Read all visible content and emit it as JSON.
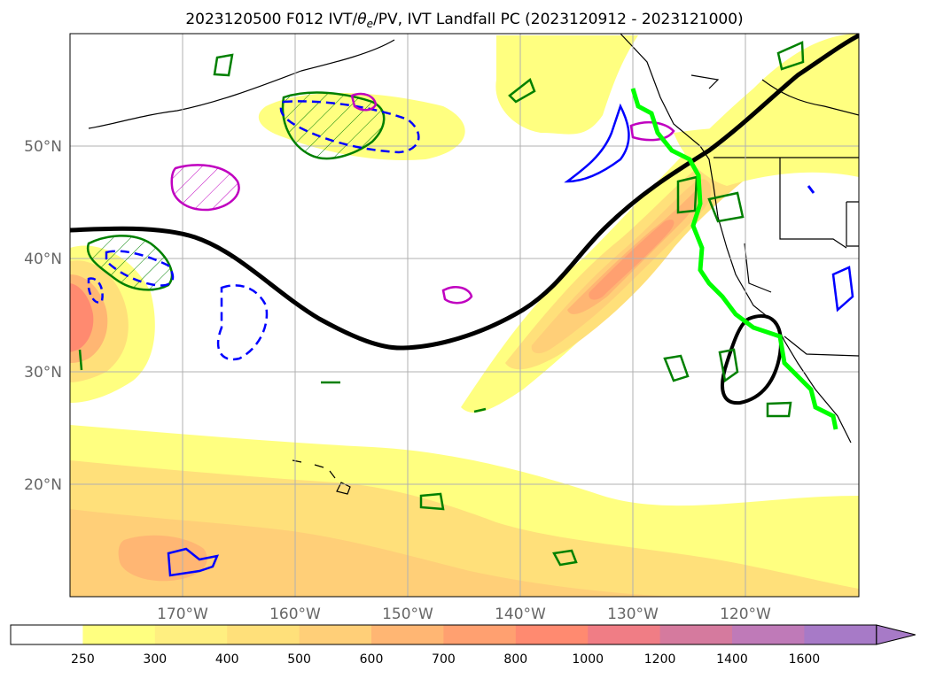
{
  "title": "2023120500 F012 IVT/θₑ/PV, IVT Landfall PC (2023120912 - 2023121000)",
  "title_parts": {
    "prefix": "2023120500 F012 IVT/",
    "theta": "θ",
    "theta_sub": "e",
    "suffix": "/PV, IVT Landfall PC (2023120912 - 2023121000)"
  },
  "map": {
    "projection": "plate-carree",
    "lon_range": [
      -180,
      -110
    ],
    "lat_range": [
      10,
      60
    ],
    "lon_ticks": [
      {
        "value": -170,
        "label": "170°W"
      },
      {
        "value": -160,
        "label": "160°W"
      },
      {
        "value": -150,
        "label": "150°W"
      },
      {
        "value": -140,
        "label": "140°W"
      },
      {
        "value": -130,
        "label": "130°W"
      },
      {
        "value": -120,
        "label": "120°W"
      }
    ],
    "lat_ticks": [
      {
        "value": 20,
        "label": "20°N"
      },
      {
        "value": 30,
        "label": "30°N"
      },
      {
        "value": 40,
        "label": "40°N"
      },
      {
        "value": 50,
        "label": "50°N"
      }
    ],
    "grid": true
  },
  "colorbar": {
    "extend": "max",
    "levels": [
      "250",
      "300",
      "400",
      "500",
      "600",
      "700",
      "800",
      "1000",
      "1200",
      "1400",
      "1600"
    ],
    "colors": [
      "#ffffff",
      "#ffff80",
      "#ffef80",
      "#ffe07a",
      "#ffcf78",
      "#ffb673",
      "#ffa070",
      "#ff8a70",
      "#f07d85",
      "#d57a9e",
      "#bf7ab8",
      "#a77ac7"
    ]
  },
  "legend_colors": {
    "ivt_landfall_track": "#00ff00",
    "pc_contour": "#000000",
    "theta_e_contour": "#008000",
    "pv_contour_solid": "#0000ff",
    "pv_contour_magenta": "#c000c0"
  }
}
